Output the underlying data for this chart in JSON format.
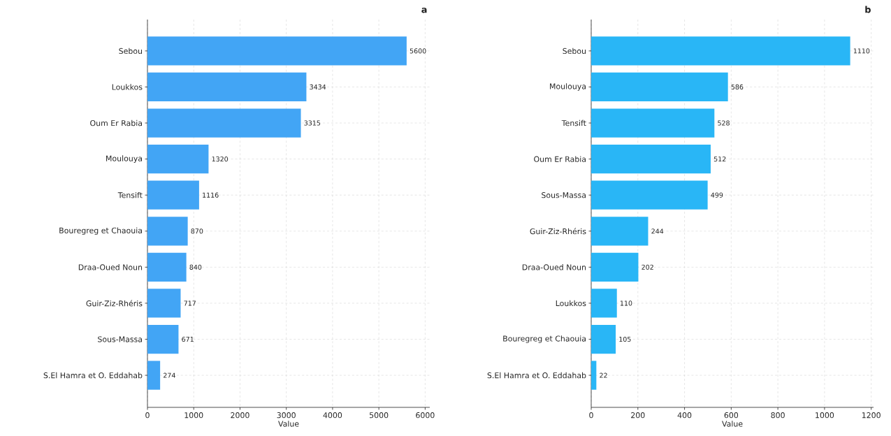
{
  "chart_data": [
    {
      "type": "bar",
      "orientation": "horizontal",
      "title": "a",
      "xlabel": "Value",
      "categories": [
        "Sebou",
        "Loukkos",
        "Oum Er Rabia",
        "Moulouya",
        "Tensift",
        "Bouregreg et Chaouia",
        "Draa-Oued Noun",
        "Guir-Ziz-Rhéris",
        "Sous-Massa",
        "S.El Hamra et O. Eddahab"
      ],
      "values": [
        5600,
        3434,
        3315,
        1320,
        1116,
        870,
        840,
        717,
        671,
        274
      ],
      "color": "#42a5f5",
      "xlim": [
        0,
        6100
      ],
      "xticks": [
        0,
        1000,
        2000,
        3000,
        4000,
        5000,
        6000
      ],
      "data_labels": true,
      "grid": true
    },
    {
      "type": "bar",
      "orientation": "horizontal",
      "title": "b",
      "xlabel": "Value",
      "categories": [
        "Sebou",
        "Moulouya",
        "Tensift",
        "Oum Er Rabia",
        "Sous-Massa",
        "Guir-Ziz-Rhéris",
        "Draa-Oued Noun",
        "Loukkos",
        "Bouregreg et Chaouia",
        "S.El Hamra et O. Eddahab"
      ],
      "values": [
        1110,
        586,
        528,
        512,
        499,
        244,
        202,
        110,
        105,
        22
      ],
      "color": "#29b6f6",
      "xlim": [
        0,
        1210
      ],
      "xticks": [
        0,
        200,
        400,
        600,
        800,
        1000,
        1200
      ],
      "data_labels": true,
      "grid": true
    }
  ]
}
